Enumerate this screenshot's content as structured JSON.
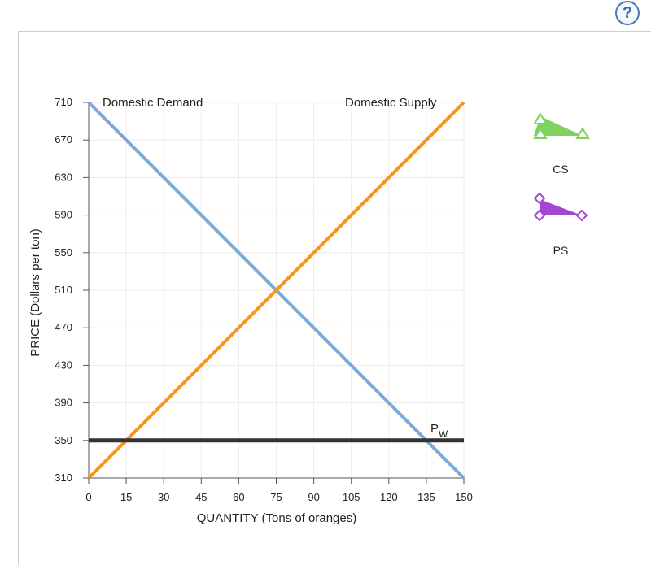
{
  "help": {
    "label": "?"
  },
  "chart_data": {
    "type": "line",
    "xlabel": "QUANTITY (Tons of oranges)",
    "ylabel": "PRICE (Dollars per ton)",
    "xlim": [
      0,
      150
    ],
    "ylim": [
      310,
      710
    ],
    "x_ticks": [
      0,
      15,
      30,
      45,
      60,
      75,
      90,
      105,
      120,
      135,
      150
    ],
    "y_ticks": [
      310,
      350,
      390,
      430,
      470,
      510,
      550,
      590,
      630,
      670,
      710
    ],
    "grid": true,
    "series": [
      {
        "name": "Domestic Demand",
        "color": "#7fa8d4",
        "x": [
          0,
          150
        ],
        "y": [
          710,
          310
        ]
      },
      {
        "name": "Domestic Supply",
        "color": "#f7941d",
        "x": [
          0,
          150
        ],
        "y": [
          310,
          710
        ]
      },
      {
        "name": "PW",
        "color": "#333333",
        "x": [
          0,
          150
        ],
        "y": [
          350,
          350
        ]
      }
    ],
    "annotations": {
      "demand_label": "Domestic Demand",
      "supply_label": "Domestic Supply",
      "world_price_label": "P",
      "world_price_subscript": "W"
    }
  },
  "palette": {
    "cs": {
      "label": "CS",
      "color": "#7ed35f",
      "icon": "triangle-tool-icon"
    },
    "ps": {
      "label": "PS",
      "color": "#a346d1",
      "icon": "diamond-tool-icon"
    }
  }
}
